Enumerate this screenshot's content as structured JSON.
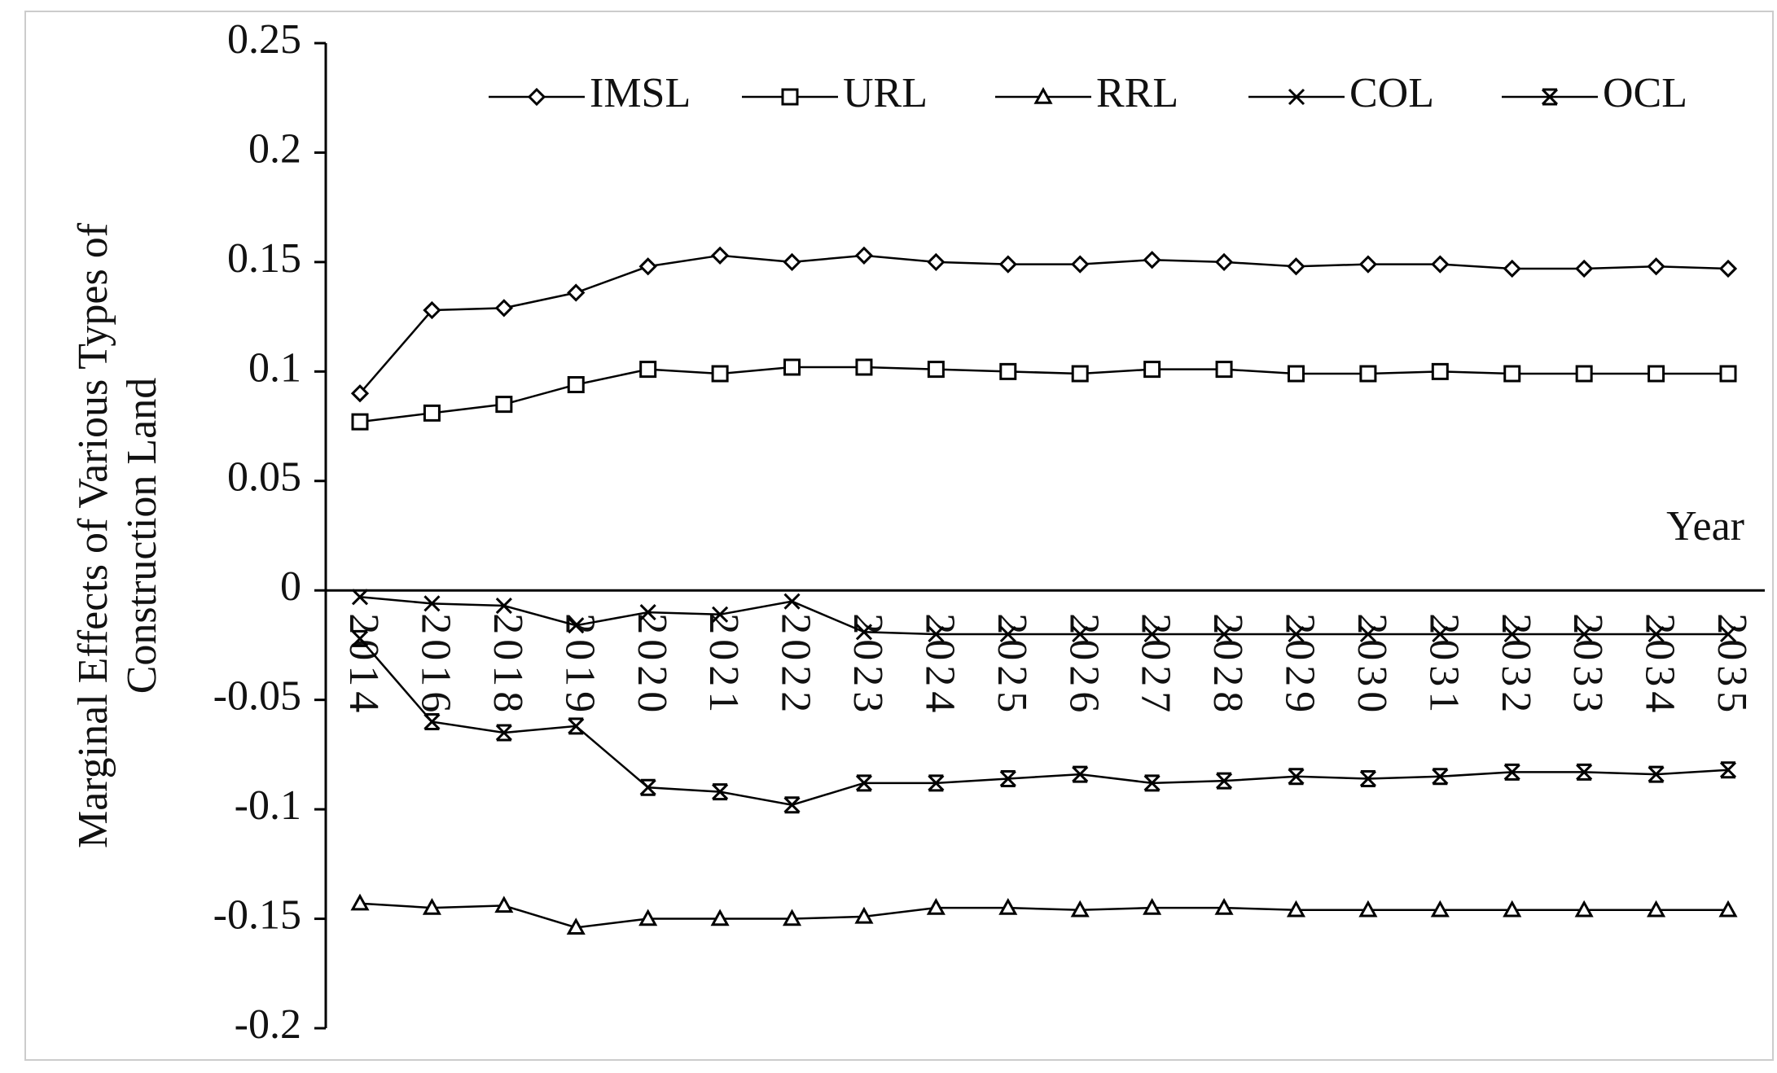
{
  "chart_data": {
    "type": "line",
    "ylabel": [
      "Marginal Effects of Various Types of",
      "Construction Land"
    ],
    "xlabel": "Year",
    "categories": [
      "2014",
      "2016",
      "2018",
      "2019",
      "2020",
      "2021",
      "2022",
      "2023",
      "2024",
      "2025",
      "2026",
      "2027",
      "2028",
      "2029",
      "2030",
      "2031",
      "2032",
      "2033",
      "2034",
      "2035"
    ],
    "series": [
      {
        "name": "IMSL",
        "color": "#000000",
        "marker": "diamond",
        "values": [
          0.09,
          0.128,
          0.129,
          0.136,
          0.148,
          0.153,
          0.15,
          0.153,
          0.15,
          0.149,
          0.149,
          0.151,
          0.15,
          0.148,
          0.149,
          0.149,
          0.147,
          0.147,
          0.148,
          0.147
        ]
      },
      {
        "name": "URL",
        "color": "#000000",
        "marker": "square",
        "values": [
          0.077,
          0.081,
          0.085,
          0.094,
          0.101,
          0.099,
          0.102,
          0.102,
          0.101,
          0.1,
          0.099,
          0.101,
          0.101,
          0.099,
          0.099,
          0.1,
          0.099,
          0.099,
          0.099,
          0.099
        ]
      },
      {
        "name": "RRL",
        "color": "#000000",
        "marker": "triangle",
        "values": [
          -0.143,
          -0.145,
          -0.144,
          -0.154,
          -0.15,
          -0.15,
          -0.15,
          -0.149,
          -0.145,
          -0.145,
          -0.146,
          -0.145,
          -0.145,
          -0.146,
          -0.146,
          -0.146,
          -0.146,
          -0.146,
          -0.146,
          -0.146
        ]
      },
      {
        "name": "COL",
        "color": "#000000",
        "marker": "x",
        "values": [
          -0.003,
          -0.006,
          -0.007,
          -0.016,
          -0.01,
          -0.011,
          -0.005,
          -0.019,
          -0.02,
          -0.02,
          -0.02,
          -0.02,
          -0.02,
          -0.02,
          -0.02,
          -0.02,
          -0.02,
          -0.02,
          -0.02,
          -0.02
        ]
      },
      {
        "name": "OCL",
        "color": "#000000",
        "marker": "star",
        "values": [
          -0.022,
          -0.06,
          -0.065,
          -0.062,
          -0.09,
          -0.092,
          -0.098,
          -0.088,
          -0.088,
          -0.086,
          -0.084,
          -0.088,
          -0.087,
          -0.085,
          -0.086,
          -0.085,
          -0.083,
          -0.083,
          -0.084,
          -0.082
        ]
      }
    ],
    "ylim": [
      -0.2,
      0.25
    ],
    "yticks": [
      0.25,
      0.2,
      0.15,
      0.1,
      0.05,
      0,
      -0.05,
      -0.1,
      -0.15,
      -0.2
    ],
    "legend": "top"
  }
}
